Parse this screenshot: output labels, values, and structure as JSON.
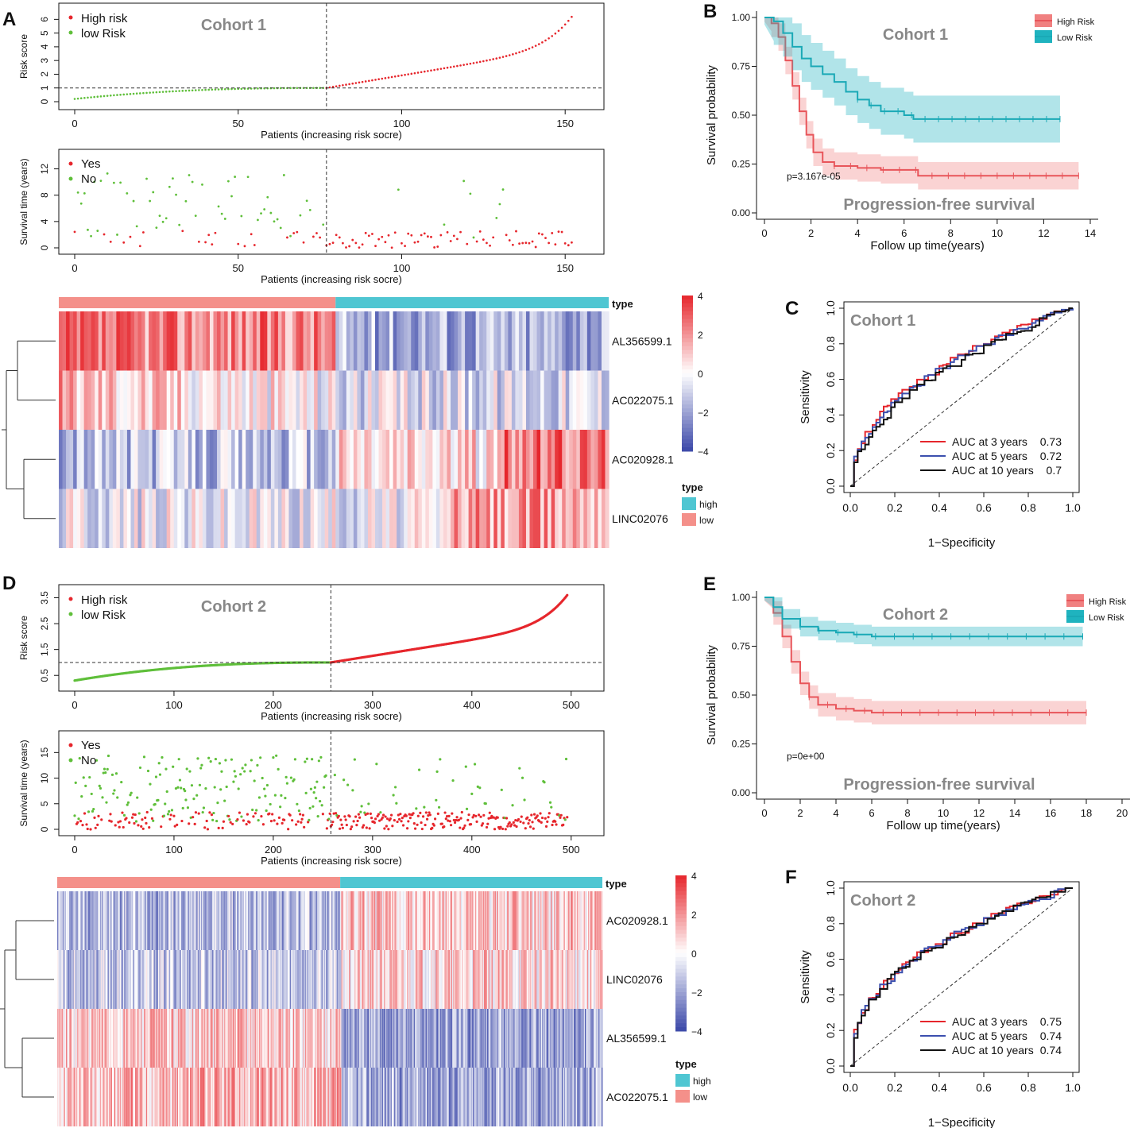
{
  "panel_labels": {
    "A": "A",
    "B": "B",
    "C": "C",
    "D": "D",
    "E": "E",
    "F": "F"
  },
  "colors": {
    "high": "#e6262c",
    "low": "#5fbf3a",
    "teal": "#1fb3bf",
    "salmon": "#f08080",
    "heat_hi": "#e6262c",
    "heat_mid": "#ffffff",
    "heat_lo": "#3a47a8",
    "type_high": "#4fc6d2",
    "type_low": "#f4908a",
    "roc3": "#e6262c",
    "roc5": "#3b4fae",
    "roc10": "#111111"
  },
  "common": {
    "risk_ylabel": "Risk score",
    "surv_ylabel": "Survival time (years)",
    "patients_xlabel": "Patients (increasing risk socre)",
    "legend_high": "High risk",
    "legend_low": "low Risk",
    "legend_yes": "Yes",
    "legend_no": "No",
    "heat_type_label": "type",
    "km_ylabel": "Survival probability",
    "km_xlabel": "Follow up time(years)",
    "km_high": "High Risk",
    "km_low": "Low Risk",
    "km_subtitle": "Progression-free survival",
    "roc_ylabel": "Sensitivity",
    "roc_xlabel": "1−Specificity"
  },
  "chart_data": [
    {
      "id": "A-risk",
      "type": "scatter",
      "title": "Cohort 1",
      "n": 153,
      "cutoff_index": 77,
      "cutoff_value": 1,
      "x_ticks": [
        0,
        50,
        100,
        150
      ],
      "y_ticks": [
        0,
        1,
        2,
        3,
        4,
        5,
        6
      ],
      "ylim": [
        0,
        6.6
      ],
      "tick_labels_x": [
        "0",
        "50",
        "100",
        "150"
      ],
      "tick_labels_y": [
        "0",
        "1",
        "2",
        "3",
        "4",
        "5",
        "6"
      ],
      "y_min": 0.2,
      "y_max": 6.5
    },
    {
      "id": "A-surv",
      "type": "scatter",
      "n": 153,
      "cutoff_index": 77,
      "x_ticks": [
        0,
        50,
        100,
        150
      ],
      "y_ticks": [
        0,
        4,
        8,
        12
      ],
      "ylim": [
        0,
        14
      ],
      "tick_labels_x": [
        "0",
        "50",
        "100",
        "150"
      ],
      "tick_labels_y": [
        "0",
        "4",
        "8",
        "12"
      ]
    },
    {
      "id": "A-heat",
      "type": "heatmap",
      "n": 153,
      "cutoff_index": 77,
      "rows": [
        "AL356599.1",
        "AC022075.1",
        "AC020928.1",
        "LINC02076"
      ],
      "scale_ticks": [
        "4",
        "2",
        "0",
        "−2",
        "−4"
      ],
      "legend_title": "type",
      "legend_items": [
        "high",
        "low"
      ]
    },
    {
      "id": "B-km",
      "type": "line",
      "title": "Cohort 1",
      "subtitle": "Progression-free survival",
      "pvalue": "p=3.167e-05",
      "x_ticks": [
        "0",
        "2",
        "4",
        "6",
        "8",
        "10",
        "12",
        "14"
      ],
      "y_ticks": [
        "0.00",
        "0.25",
        "0.50",
        "0.75",
        "1.00"
      ],
      "xlim": [
        0,
        14
      ],
      "ylim": [
        0,
        1
      ],
      "series": [
        {
          "name": "High Risk",
          "points": [
            [
              0,
              1
            ],
            [
              0.3,
              0.97
            ],
            [
              0.6,
              0.9
            ],
            [
              0.9,
              0.78
            ],
            [
              1.2,
              0.65
            ],
            [
              1.5,
              0.52
            ],
            [
              1.8,
              0.4
            ],
            [
              2.1,
              0.31
            ],
            [
              2.5,
              0.26
            ],
            [
              3,
              0.24
            ],
            [
              4,
              0.23
            ],
            [
              5,
              0.22
            ],
            [
              6.6,
              0.22
            ],
            [
              6.6,
              0.19
            ],
            [
              13.5,
              0.19
            ]
          ],
          "ci": 0.07
        },
        {
          "name": "Low Risk",
          "points": [
            [
              0,
              1
            ],
            [
              0.4,
              0.98
            ],
            [
              0.8,
              0.92
            ],
            [
              1.2,
              0.85
            ],
            [
              1.6,
              0.79
            ],
            [
              2,
              0.75
            ],
            [
              2.5,
              0.71
            ],
            [
              3,
              0.67
            ],
            [
              3.5,
              0.62
            ],
            [
              4,
              0.58
            ],
            [
              4.5,
              0.55
            ],
            [
              5,
              0.52
            ],
            [
              6,
              0.5
            ],
            [
              6.4,
              0.48
            ],
            [
              12.7,
              0.48
            ]
          ],
          "ci": 0.12
        }
      ]
    },
    {
      "id": "C-roc",
      "type": "line",
      "title": "Cohort 1",
      "x_ticks": [
        "0.0",
        "0.2",
        "0.4",
        "0.6",
        "0.8",
        "1.0"
      ],
      "y_ticks": [
        "0.0",
        "0.2",
        "0.4",
        "0.6",
        "0.8",
        "1.0"
      ],
      "series": [
        {
          "name": "AUC at 3 years",
          "auc": "0.73"
        },
        {
          "name": "AUC at 5 years",
          "auc": "0.72"
        },
        {
          "name": "AUC at 10 years",
          "auc": "0.7"
        }
      ]
    },
    {
      "id": "D-risk",
      "type": "scatter",
      "title": "Cohort 2",
      "n": 497,
      "cutoff_index": 258,
      "cutoff_value": 1,
      "x_ticks": [
        0,
        100,
        200,
        300,
        400,
        500
      ],
      "y_ticks": [
        0.5,
        1.5,
        2.5,
        3.5
      ],
      "ylim": [
        0.2,
        3.7
      ],
      "tick_labels_x": [
        "0",
        "100",
        "200",
        "300",
        "400",
        "500"
      ],
      "tick_labels_y": [
        "0.5",
        "1.5",
        "2.5",
        "3.5"
      ],
      "y_min": 0.3,
      "y_max": 3.65
    },
    {
      "id": "D-surv",
      "type": "scatter",
      "n": 497,
      "cutoff_index": 258,
      "x_ticks": [
        0,
        100,
        200,
        300,
        400,
        500
      ],
      "y_ticks": [
        0,
        5,
        10,
        15
      ],
      "ylim": [
        0,
        18
      ],
      "tick_labels_x": [
        "0",
        "100",
        "200",
        "300",
        "400",
        "500"
      ],
      "tick_labels_y": [
        "0",
        "5",
        "10",
        "15"
      ]
    },
    {
      "id": "D-heat",
      "type": "heatmap",
      "n": 497,
      "cutoff_index": 258,
      "rows": [
        "AC020928.1",
        "LINC02076",
        "AL356599.1",
        "AC022075.1"
      ],
      "scale_ticks": [
        "4",
        "2",
        "0",
        "−2",
        "−4"
      ],
      "legend_title": "type",
      "legend_items": [
        "high",
        "low"
      ]
    },
    {
      "id": "E-km",
      "type": "line",
      "title": "Cohort 2",
      "subtitle": "Progression-free survival",
      "pvalue": "p=0e+00",
      "x_ticks": [
        "0",
        "2",
        "4",
        "6",
        "8",
        "10",
        "12",
        "14",
        "16",
        "18",
        "20"
      ],
      "y_ticks": [
        "0.00",
        "0.25",
        "0.50",
        "0.75",
        "1.00"
      ],
      "xlim": [
        0,
        20
      ],
      "ylim": [
        0,
        1
      ],
      "series": [
        {
          "name": "High Risk",
          "points": [
            [
              0,
              1
            ],
            [
              0.5,
              0.92
            ],
            [
              1,
              0.8
            ],
            [
              1.5,
              0.67
            ],
            [
              2,
              0.56
            ],
            [
              2.5,
              0.49
            ],
            [
              3,
              0.45
            ],
            [
              4,
              0.43
            ],
            [
              5,
              0.42
            ],
            [
              6,
              0.41
            ],
            [
              18,
              0.41
            ]
          ],
          "ci": 0.06
        },
        {
          "name": "Low Risk",
          "points": [
            [
              0,
              1
            ],
            [
              0.5,
              0.95
            ],
            [
              1,
              0.89
            ],
            [
              2,
              0.85
            ],
            [
              3,
              0.83
            ],
            [
              4,
              0.82
            ],
            [
              5,
              0.81
            ],
            [
              6,
              0.8
            ],
            [
              17.8,
              0.8
            ]
          ],
          "ci": 0.05
        }
      ]
    },
    {
      "id": "F-roc",
      "type": "line",
      "title": "Cohort 2",
      "x_ticks": [
        "0.0",
        "0.2",
        "0.4",
        "0.6",
        "0.8",
        "1.0"
      ],
      "y_ticks": [
        "0.0",
        "0.2",
        "0.4",
        "0.6",
        "0.8",
        "1.0"
      ],
      "series": [
        {
          "name": "AUC at 3 years",
          "auc": "0.75"
        },
        {
          "name": "AUC at 5 years",
          "auc": "0.74"
        },
        {
          "name": "AUC at 10 years",
          "auc": "0.74"
        }
      ]
    }
  ]
}
